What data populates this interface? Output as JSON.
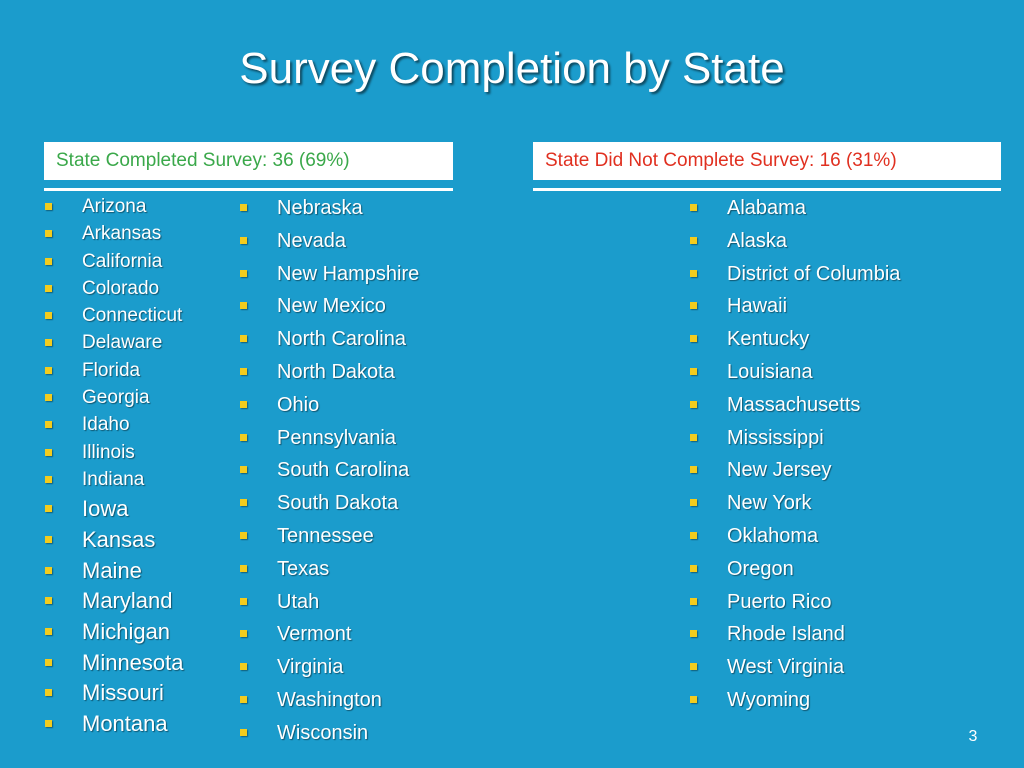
{
  "title": "Survey Completion by State",
  "completed": {
    "header": "State Completed Survey: 36 (69%)",
    "column1": [
      "Arizona",
      "Arkansas",
      "California",
      "Colorado",
      "Connecticut",
      "Delaware",
      "Florida",
      "Georgia",
      "Idaho",
      "Illinois",
      "Indiana",
      "Iowa",
      "Kansas",
      "Maine",
      "Maryland",
      "Michigan",
      "Minnesota",
      "Missouri",
      "Montana"
    ],
    "column2": [
      "Nebraska",
      "Nevada",
      "New Hampshire",
      "New Mexico",
      "North Carolina",
      "North Dakota",
      "Ohio",
      "Pennsylvania",
      "South Carolina",
      "South Dakota",
      "Tennessee",
      "Texas",
      "Utah",
      "Vermont",
      "Virginia",
      "Washington",
      "Wisconsin"
    ]
  },
  "not_completed": {
    "header": "State Did Not Complete Survey: 16 (31%)",
    "items": [
      "Alabama",
      "Alaska",
      "District of Columbia",
      "Hawaii",
      "Kentucky",
      "Louisiana",
      "Massachusetts",
      "Mississippi",
      "New Jersey",
      "New York",
      "Oklahoma",
      "Oregon",
      "Puerto Rico",
      "Rhode Island",
      "West Virginia",
      "Wyoming"
    ]
  },
  "page_number": "3",
  "colors": {
    "background": "#1b9ccc",
    "completed_header_text": "#3aa84a",
    "not_completed_header_text": "#e03020",
    "bullet": "#f2cc1e"
  }
}
